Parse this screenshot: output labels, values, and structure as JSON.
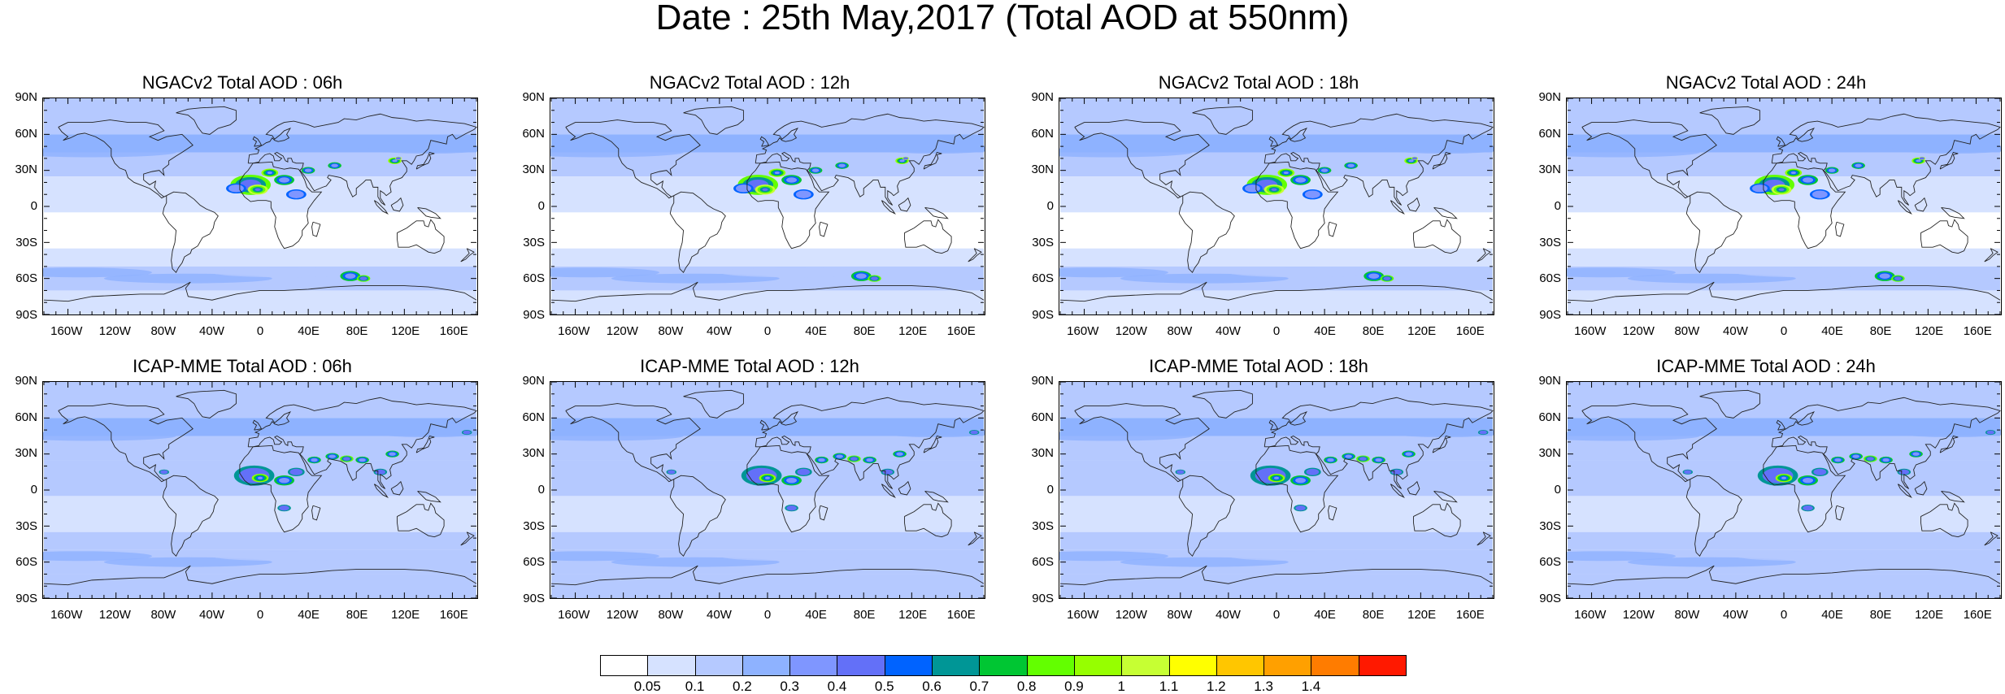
{
  "title": "Date : 25th May,2017 (Total AOD at 550nm)",
  "panels": [
    {
      "title": "NGACv2 Total AOD : 06h",
      "model": "NGACv2",
      "hour": "06h"
    },
    {
      "title": "NGACv2 Total AOD : 12h",
      "model": "NGACv2",
      "hour": "12h"
    },
    {
      "title": "NGACv2 Total AOD : 18h",
      "model": "NGACv2",
      "hour": "18h"
    },
    {
      "title": "NGACv2 Total AOD : 24h",
      "model": "NGACv2",
      "hour": "24h"
    },
    {
      "title": "ICAP-MME Total AOD : 06h",
      "model": "ICAP-MME",
      "hour": "06h"
    },
    {
      "title": "ICAP-MME Total AOD : 12h",
      "model": "ICAP-MME",
      "hour": "12h"
    },
    {
      "title": "ICAP-MME Total AOD : 18h",
      "model": "ICAP-MME",
      "hour": "18h"
    },
    {
      "title": "ICAP-MME Total AOD : 24h",
      "model": "ICAP-MME",
      "hour": "24h"
    }
  ],
  "lat_labels": [
    "90N",
    "60N",
    "30N",
    "0",
    "30S",
    "60S",
    "90S"
  ],
  "lon_labels": [
    "160W",
    "120W",
    "80W",
    "40W",
    "0",
    "40E",
    "80E",
    "120E",
    "160E"
  ],
  "colorbar": {
    "labels": [
      "0.05",
      "0.1",
      "0.2",
      "0.3",
      "0.4",
      "0.5",
      "0.6",
      "0.7",
      "0.8",
      "0.9",
      "1",
      "1.1",
      "1.2",
      "1.3",
      "1.4"
    ],
    "colors": [
      "#ffffff",
      "#d6e2ff",
      "#b5c9ff",
      "#8eb2ff",
      "#7f96ff",
      "#6370f8",
      "#0063ff",
      "#009696",
      "#00c633",
      "#63ff00",
      "#96ff00",
      "#c6ff33",
      "#ffff00",
      "#ffc600",
      "#ffa000",
      "#ff7c00",
      "#ff1900"
    ]
  }
}
